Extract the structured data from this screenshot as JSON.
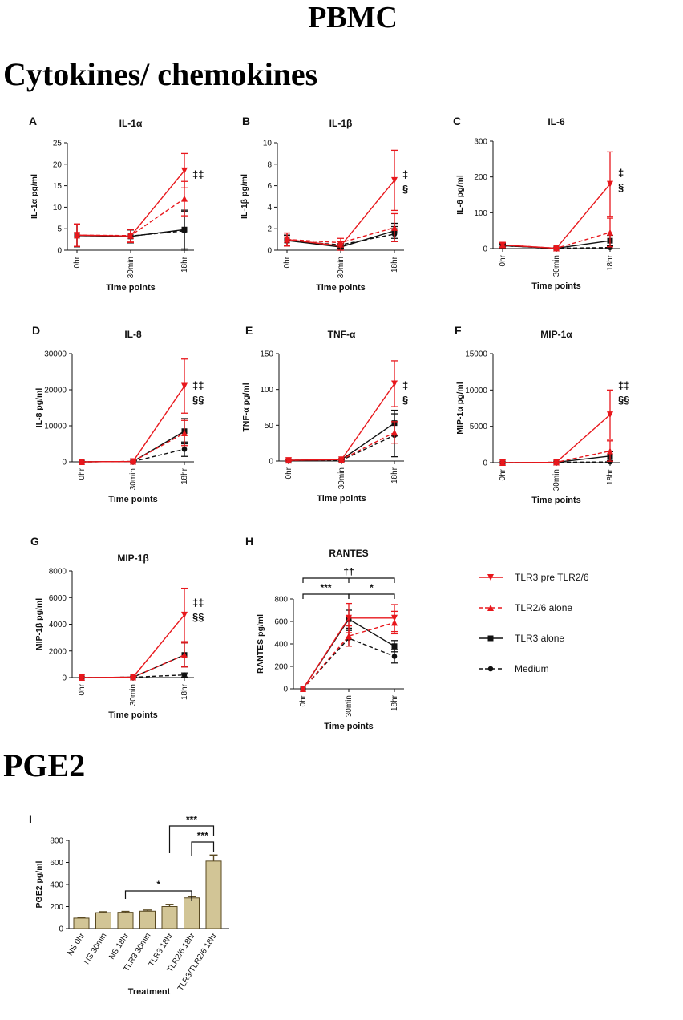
{
  "headings": {
    "main_title": "PBMC",
    "section_cytokines": "Cytokines/ chemokines",
    "section_pge2": "PGE2"
  },
  "colors": {
    "red": "#e8171c",
    "black": "#111111",
    "bar_fill": "#d2c596",
    "bar_stroke": "#5a4a22"
  },
  "legend": {
    "position": "right-of-panel-H",
    "items": [
      {
        "label": "TLR3 pre TLR2/6",
        "color": "#e8171c",
        "marker": "triangle-down",
        "dash": "solid"
      },
      {
        "label": "TLR2/6 alone",
        "color": "#e8171c",
        "marker": "triangle-up",
        "dash": "dashed"
      },
      {
        "label": "TLR3 alone",
        "color": "#111111",
        "marker": "square",
        "dash": "solid"
      },
      {
        "label": "Medium",
        "color": "#111111",
        "marker": "circle",
        "dash": "dashed"
      }
    ]
  },
  "chart_data": [
    {
      "type": "line",
      "panel": "A",
      "title": "IL-1α",
      "xlabel": "Time points",
      "ylabel": "IL-1α pg/ml",
      "categories": [
        "0hr",
        "30min",
        "18hr"
      ],
      "ylim": [
        0,
        25
      ],
      "yticks": [
        "0",
        "5",
        "10",
        "15",
        "20",
        "25"
      ],
      "annotation": [
        "‡‡"
      ],
      "series": [
        {
          "name": "TLR3 pre TLR2/6",
          "values": [
            3.5,
            3.3,
            18.5
          ],
          "errors": [
            2.6,
            1.5,
            4
          ]
        },
        {
          "name": "TLR2/6 alone",
          "values": [
            3.5,
            3.4,
            12
          ],
          "errors": [
            2.6,
            1.5,
            4
          ]
        },
        {
          "name": "TLR3 alone",
          "values": [
            3.4,
            3.2,
            4.8
          ],
          "errors": [
            2.6,
            1.5,
            4.5
          ]
        },
        {
          "name": "Medium",
          "values": [
            3.4,
            3.3,
            4.5
          ],
          "errors": [
            2.6,
            1.5,
            4.5
          ]
        }
      ]
    },
    {
      "type": "line",
      "panel": "B",
      "title": "IL-1β",
      "xlabel": "",
      "ylabel": "IL-1β pg/ml",
      "categories": [
        "0hr",
        "30min",
        "18hr"
      ],
      "ylim": [
        0,
        10
      ],
      "yticks": [
        "0",
        "2",
        "4",
        "6",
        "8",
        "10"
      ],
      "annotation": [
        "‡",
        "§"
      ],
      "series": [
        {
          "name": "TLR3 pre TLR2/6",
          "values": [
            1.0,
            0.4,
            6.5
          ],
          "errors": [
            0.6,
            0.4,
            2.8
          ]
        },
        {
          "name": "TLR2/6 alone",
          "values": [
            1.0,
            0.7,
            2.1
          ],
          "errors": [
            0.6,
            0.4,
            1.3
          ]
        },
        {
          "name": "TLR3 alone",
          "values": [
            0.9,
            0.3,
            1.8
          ],
          "errors": [
            0.5,
            0.3,
            0.7
          ]
        },
        {
          "name": "Medium",
          "values": [
            0.9,
            0.5,
            1.5
          ],
          "errors": [
            0.5,
            0.3,
            0.7
          ]
        }
      ]
    },
    {
      "type": "line",
      "panel": "C",
      "title": "IL-6",
      "xlabel": "",
      "ylabel": "IL-6 pg/ml",
      "categories": [
        "0hr",
        "30min",
        "18hr"
      ],
      "ylim": [
        0,
        300
      ],
      "yticks": [
        "0",
        "100",
        "200",
        "300"
      ],
      "annotation": [
        "‡",
        "§"
      ],
      "series": [
        {
          "name": "TLR3 pre TLR2/6",
          "values": [
            10,
            1,
            180
          ],
          "errors": [
            6,
            2,
            90
          ]
        },
        {
          "name": "TLR2/6 alone",
          "values": [
            10,
            1,
            45
          ],
          "errors": [
            6,
            2,
            40
          ]
        },
        {
          "name": "TLR3 alone",
          "values": [
            8,
            1,
            22
          ],
          "errors": [
            5,
            2,
            15
          ]
        },
        {
          "name": "Medium",
          "values": [
            8,
            1,
            3
          ],
          "errors": [
            5,
            2,
            5
          ]
        }
      ]
    },
    {
      "type": "line",
      "panel": "D",
      "title": "IL-8",
      "xlabel": "Time points",
      "ylabel": "IL-8 pg/ml",
      "categories": [
        "0hr",
        "30min",
        "18hr"
      ],
      "ylim": [
        0,
        30000
      ],
      "yticks": [
        "0",
        "10000",
        "20000",
        "30000"
      ],
      "annotation": [
        "‡‡",
        "§§"
      ],
      "series": [
        {
          "name": "TLR3 pre TLR2/6",
          "values": [
            0,
            100,
            21000
          ],
          "errors": [
            100,
            100,
            7500
          ]
        },
        {
          "name": "TLR2/6 alone",
          "values": [
            0,
            100,
            8000
          ],
          "errors": [
            100,
            100,
            3500
          ]
        },
        {
          "name": "TLR3 alone",
          "values": [
            0,
            100,
            8500
          ],
          "errors": [
            100,
            100,
            3500
          ]
        },
        {
          "name": "Medium",
          "values": [
            0,
            100,
            3500
          ],
          "errors": [
            100,
            100,
            2000
          ]
        }
      ]
    },
    {
      "type": "line",
      "panel": "E",
      "title": "TNF-α",
      "xlabel": "Time points",
      "ylabel": "TNF-α pg/ml",
      "categories": [
        "0hr",
        "30min",
        "18hr"
      ],
      "ylim": [
        0,
        150
      ],
      "yticks": [
        "0",
        "50",
        "100",
        "150"
      ],
      "annotation": [
        "‡",
        "§"
      ],
      "series": [
        {
          "name": "TLR3 pre TLR2/6",
          "values": [
            1,
            2,
            108
          ],
          "errors": [
            1,
            1,
            32
          ]
        },
        {
          "name": "TLR2/6 alone",
          "values": [
            1,
            2,
            40
          ],
          "errors": [
            1,
            1,
            15
          ]
        },
        {
          "name": "TLR3 alone",
          "values": [
            1,
            2,
            53
          ],
          "errors": [
            1,
            1,
            18
          ]
        },
        {
          "name": "Medium",
          "values": [
            1,
            1,
            36
          ],
          "errors": [
            1,
            1,
            30
          ]
        }
      ]
    },
    {
      "type": "line",
      "panel": "F",
      "title": "MIP-1α",
      "xlabel": "Time points",
      "ylabel": "MIP-1α pg/ml",
      "categories": [
        "0hr",
        "30min",
        "18hr"
      ],
      "ylim": [
        0,
        15000
      ],
      "yticks": [
        "0",
        "5000",
        "10000",
        "15000"
      ],
      "annotation": [
        "‡‡",
        "§§"
      ],
      "series": [
        {
          "name": "TLR3 pre TLR2/6",
          "values": [
            0,
            50,
            6600
          ],
          "errors": [
            50,
            50,
            3400
          ]
        },
        {
          "name": "TLR2/6 alone",
          "values": [
            0,
            50,
            1600
          ],
          "errors": [
            50,
            50,
            1400
          ]
        },
        {
          "name": "TLR3 alone",
          "values": [
            0,
            50,
            900
          ],
          "errors": [
            50,
            50,
            600
          ]
        },
        {
          "name": "Medium",
          "values": [
            0,
            50,
            100
          ],
          "errors": [
            50,
            50,
            100
          ]
        }
      ]
    },
    {
      "type": "line",
      "panel": "G",
      "title": "MIP-1β",
      "xlabel": "Time points",
      "ylabel": "MIP-1β pg/ml",
      "categories": [
        "0hr",
        "30min",
        "18hr"
      ],
      "ylim": [
        0,
        8000
      ],
      "yticks": [
        "0",
        "2000",
        "4000",
        "6000",
        "8000"
      ],
      "annotation": [
        "‡‡",
        "§§"
      ],
      "series": [
        {
          "name": "TLR3 pre TLR2/6",
          "values": [
            0,
            30,
            4700
          ],
          "errors": [
            30,
            30,
            2000
          ]
        },
        {
          "name": "TLR2/6 alone",
          "values": [
            0,
            30,
            1700
          ],
          "errors": [
            30,
            30,
            900
          ]
        },
        {
          "name": "TLR3 alone",
          "values": [
            0,
            30,
            1700
          ],
          "errors": [
            30,
            30,
            900
          ]
        },
        {
          "name": "Medium",
          "values": [
            0,
            30,
            200
          ],
          "errors": [
            30,
            30,
            150
          ]
        }
      ]
    },
    {
      "type": "line",
      "panel": "H",
      "title": "RANTES",
      "xlabel": "Time points",
      "ylabel": "RANTES pg/ml",
      "categories": [
        "0hr",
        "30min",
        "18hr"
      ],
      "ylim": [
        0,
        800
      ],
      "yticks": [
        "0",
        "200",
        "400",
        "600",
        "800"
      ],
      "annotation": [],
      "brackets": [
        {
          "from": 0,
          "to": 2,
          "label": "††"
        },
        {
          "from": 0,
          "to": 1,
          "label": "***"
        },
        {
          "from": 1,
          "to": 2,
          "label": "*"
        }
      ],
      "series": [
        {
          "name": "TLR3 pre TLR2/6",
          "values": [
            0,
            630,
            630
          ],
          "errors": [
            0,
            130,
            120
          ]
        },
        {
          "name": "TLR2/6 alone",
          "values": [
            0,
            470,
            590
          ],
          "errors": [
            0,
            90,
            100
          ]
        },
        {
          "name": "TLR3 alone",
          "values": [
            0,
            620,
            380
          ],
          "errors": [
            0,
            80,
            50
          ]
        },
        {
          "name": "Medium",
          "values": [
            0,
            450,
            290
          ],
          "errors": [
            0,
            70,
            60
          ]
        }
      ]
    },
    {
      "type": "bar",
      "panel": "I",
      "title": "",
      "xlabel": "Treatment",
      "ylabel": "PGE2 pg/ml",
      "categories": [
        "NS 0hr",
        "NS 30min",
        "NS 18hr",
        "TLR3 30min",
        "TLR3 18hr",
        "TLR2/6 18hr",
        "TLR3/TLR2/6 18hr"
      ],
      "values": [
        95,
        145,
        148,
        158,
        200,
        278,
        612
      ],
      "errors": [
        5,
        8,
        8,
        10,
        20,
        15,
        55
      ],
      "ylim": [
        0,
        800
      ],
      "yticks": [
        "0",
        "200",
        "400",
        "600",
        "800"
      ],
      "brackets": [
        {
          "from": 4,
          "to": 6,
          "label": "***"
        },
        {
          "from": 5,
          "to": 6,
          "label": "***"
        },
        {
          "from": 2,
          "to": 5,
          "label": "*"
        }
      ]
    }
  ]
}
